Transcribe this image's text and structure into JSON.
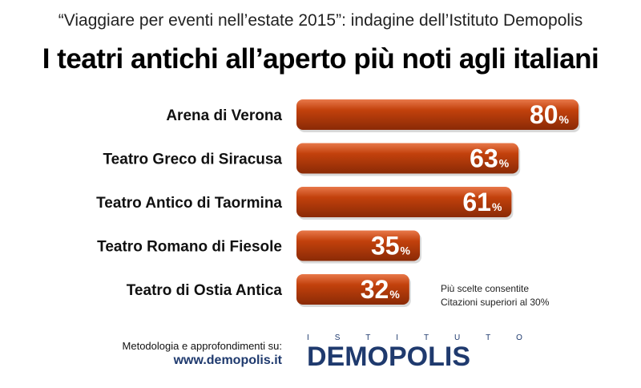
{
  "header": {
    "subtitle": "“Viaggiare per eventi nell’estate 2015”: indagine dell’Istituto Demopolis",
    "title": "I teatri antichi all’aperto più noti agli italiani"
  },
  "chart_data": {
    "type": "bar",
    "orientation": "horizontal",
    "categories": [
      "Arena di Verona",
      "Teatro Greco di Siracusa",
      "Teatro Antico di Taormina",
      "Teatro Romano di Fiesole",
      "Teatro di Ostia Antica"
    ],
    "values": [
      80,
      63,
      61,
      35,
      32
    ],
    "value_suffix": "%",
    "bar_color": "#c2410c",
    "bar_color_light": "#e8784a",
    "bar_color_dark": "#8a2a06"
  },
  "note": {
    "line1": "Più scelte consentite",
    "line2": "Citazioni superiori al 30%"
  },
  "footer": {
    "method_label": "Metodologia e approfondimenti su:",
    "url": "www.demopolis.it",
    "logo_small_letters": [
      "I",
      "S",
      "T",
      "I",
      "T",
      "U",
      "T",
      "O"
    ],
    "logo_text": "DEMOPOLIS"
  }
}
